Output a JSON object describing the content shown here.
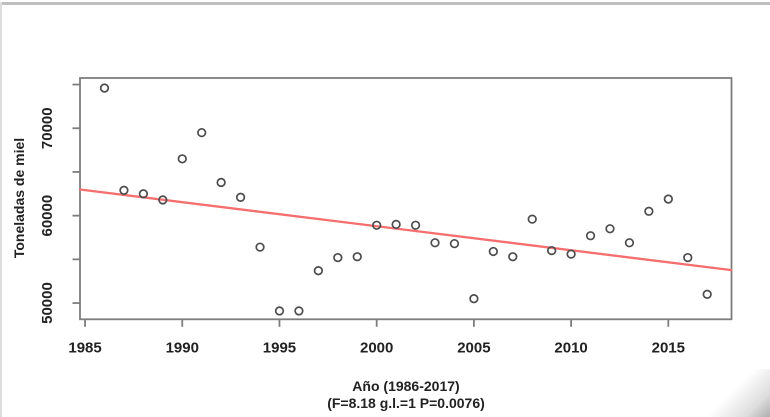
{
  "figure": {
    "background": "#ffffff",
    "top_edge_color": "#bfbfbf",
    "left_edge_color": "#dcdcdc"
  },
  "chart_data": {
    "type": "scatter",
    "title": "",
    "xlabel": "Año (1986-2017)",
    "xlabel_line2": "(F=8.18 g.l.=1 P=0.0076)",
    "ylabel": "Toneladas de miel",
    "x": [
      1986,
      1987,
      1988,
      1989,
      1990,
      1991,
      1992,
      1993,
      1994,
      1995,
      1996,
      1997,
      1998,
      1999,
      2000,
      2001,
      2002,
      2003,
      2004,
      2005,
      2006,
      2007,
      2008,
      2009,
      2010,
      2011,
      2012,
      2013,
      2014,
      2015,
      2016,
      2017
    ],
    "y": [
      74600,
      62900,
      62500,
      61800,
      66500,
      69500,
      63800,
      62100,
      56400,
      49100,
      49100,
      53700,
      55200,
      55300,
      58900,
      59000,
      58900,
      56900,
      56800,
      50500,
      55900,
      55300,
      59600,
      56000,
      55600,
      57700,
      58500,
      56900,
      60500,
      61900,
      55200,
      51000
    ],
    "trendline": {
      "x1": 1984.74,
      "y1": 62990,
      "x2": 2018.25,
      "y2": 53770
    },
    "xlim": [
      1984.74,
      2018.25
    ],
    "ylim": [
      48140,
      75750
    ],
    "x_ticks": [
      1985,
      1990,
      1995,
      2000,
      2005,
      2010,
      2015
    ],
    "y_ticks": [
      50000,
      55000,
      60000,
      65000,
      70000,
      75000
    ],
    "y_labeled_ticks": [
      50000,
      60000,
      70000
    ],
    "grid": false,
    "legend": null,
    "marker": "open-circle",
    "colors": {
      "point_stroke": "#4d4d4d",
      "trend_line": "#f56f6f",
      "frame": "#7d7d7d",
      "text": "#222222"
    },
    "stats_annotation": {
      "F": "8.18",
      "gl": "1",
      "P": "0.0076"
    }
  }
}
